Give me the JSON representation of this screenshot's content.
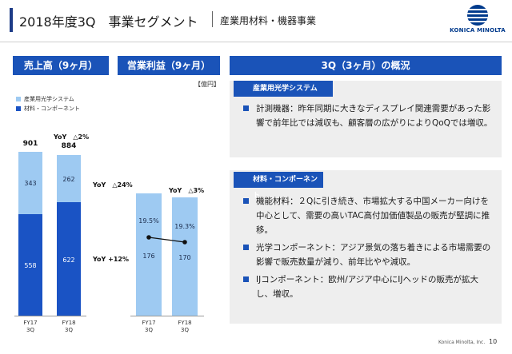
{
  "header": {
    "title": "2018年度3Q　事業セグメント",
    "subtitle": "産業用材料・機器事業",
    "logo_text": "KONICA MINOLTA"
  },
  "left": {
    "sales_title": "売上高（9ヶ月）",
    "profit_title": "営業利益（9ヶ月）",
    "unit": "【億円】",
    "legend": [
      {
        "label": "産業用光学システム",
        "color": "#9ecaf2"
      },
      {
        "label": "材料・コンポーネント",
        "color": "#1a53c4"
      }
    ]
  },
  "chart_data": [
    {
      "type": "bar",
      "title": "売上高（9ヶ月）",
      "categories": [
        "FY17 3Q",
        "FY18 3Q"
      ],
      "series": [
        {
          "name": "材料・コンポーネント",
          "values": [
            558,
            622
          ]
        },
        {
          "name": "産業用光学システム",
          "values": [
            343,
            262
          ]
        }
      ],
      "totals": [
        901,
        884
      ],
      "annotations": {
        "total_yoy": "YoY　△2%",
        "optical_yoy": "YoY　△24%",
        "materials_yoy": "YoY +12%"
      }
    },
    {
      "type": "bar",
      "title": "営業利益（9ヶ月）",
      "categories": [
        "FY17 3Q",
        "FY18 3Q"
      ],
      "series": [
        {
          "values": [
            176,
            170
          ]
        }
      ],
      "margin": [
        "19.5%",
        "19.3%"
      ],
      "annotations": {
        "yoy": "YoY　△3%"
      }
    }
  ],
  "x_labels": [
    {
      "line1": "FY17",
      "line2": "3Q"
    },
    {
      "line1": "FY18",
      "line2": "3Q"
    }
  ],
  "right": {
    "overview_title": "3Q（3ヶ月）の概況",
    "optical": {
      "label": "産業用光学システム",
      "bullets": [
        "計測機器：昨年同期に大きなディスプレイ関連需要があった影響で前年比では減収も、顧客層の広がりによりQoQでは増収。"
      ]
    },
    "materials": {
      "label": "材料・コンポーネント",
      "bullets": [
        "機能材料：２Qに引き続き、市場拡大する中国メーカー向けを中心として、需要の高いTAC高付加価値製品の販売が堅調に推移。",
        "光学コンポーネント：アジア景気の落ち着きによる市場需要の影響で販売数量が減り、前年比やや減収。",
        "IJコンポーネント：欧州/アジア中心にIJヘッドの販売が拡大し、増収。"
      ]
    }
  },
  "footer": {
    "company": "Konica Minolta, Inc.",
    "page": "10"
  }
}
